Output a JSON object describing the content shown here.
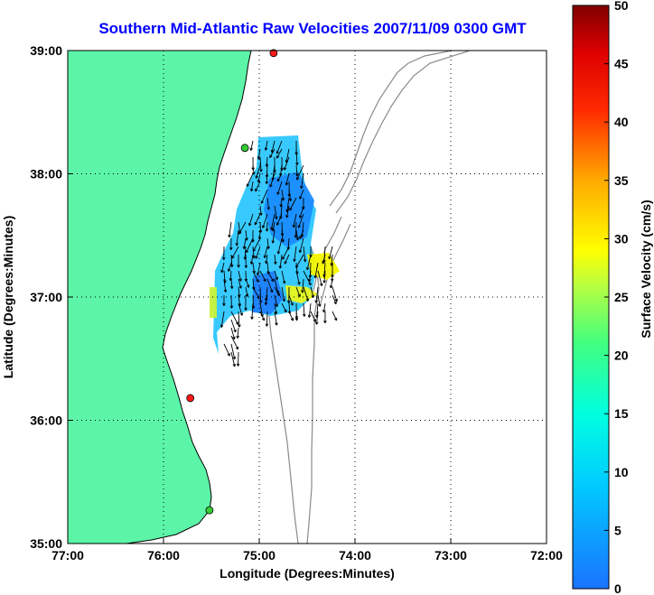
{
  "title": "Southern Mid-Atlantic Raw Velocities 2007/11/09 0300 GMT",
  "colors": {
    "land": "#5cf5a8",
    "coast": "#000000",
    "bathymetry": "#8a8a8a",
    "station_red": "#ff1a1a",
    "station_green": "#33cc33"
  },
  "chart_data": {
    "type": "map",
    "xlabel": "Longitude (Degrees:Minutes)",
    "ylabel": "Latitude (Degrees:Minutes)",
    "xlim": [
      -77.0,
      -72.0
    ],
    "ylim": [
      35.0,
      39.0
    ],
    "x_ticks": [
      "77:00",
      "76:00",
      "75:00",
      "74:00",
      "73:00",
      "72:00"
    ],
    "y_ticks": [
      "39:00",
      "38:00",
      "37:00",
      "36:00",
      "35:00"
    ],
    "grid": "dotted",
    "stations": [
      {
        "lon": -74.85,
        "lat": 38.98,
        "color": "red"
      },
      {
        "lon": -75.15,
        "lat": 38.21,
        "color": "green"
      },
      {
        "lon": -75.72,
        "lat": 36.18,
        "color": "red"
      },
      {
        "lon": -75.52,
        "lat": 35.27,
        "color": "green"
      }
    ],
    "colorbar": {
      "label": "Surface Velocity (cm/s)",
      "range": [
        0,
        50
      ],
      "ticks": [
        "0",
        "5",
        "10",
        "15",
        "20",
        "25",
        "30",
        "35",
        "40",
        "45",
        "50"
      ],
      "colormap": "jet"
    }
  }
}
